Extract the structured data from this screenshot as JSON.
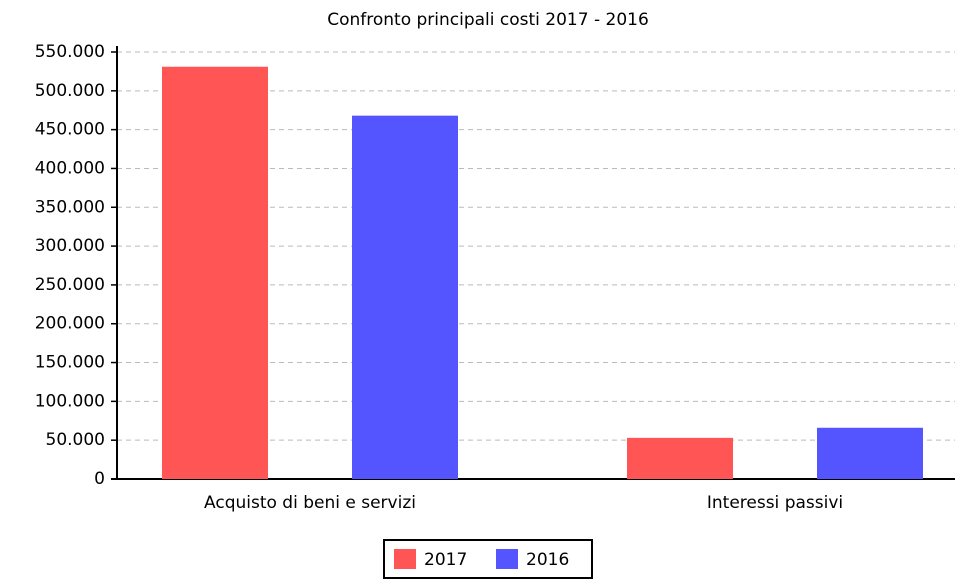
{
  "chart_data": {
    "type": "bar",
    "title": "Confronto principali costi 2017 - 2016",
    "categories": [
      "Acquisto di beni e servizi",
      "Interessi passivi"
    ],
    "series": [
      {
        "name": "2017",
        "color": "#ff5555",
        "values": [
          531000,
          53000
        ]
      },
      {
        "name": "2016",
        "color": "#5555ff",
        "values": [
          468000,
          66000
        ]
      }
    ],
    "ylim": [
      0,
      550000
    ],
    "yticks": [
      0,
      {
        "value": 50000,
        "label": "50.000"
      },
      {
        "value": 100000,
        "label": "100.000"
      },
      {
        "value": 150000,
        "label": "150.000"
      },
      {
        "value": 200000,
        "label": "200.000"
      },
      {
        "value": 250000,
        "label": "250.000"
      },
      {
        "value": 300000,
        "label": "300.000"
      },
      {
        "value": 350000,
        "label": "350.000"
      },
      {
        "value": 400000,
        "label": "400.000"
      },
      {
        "value": 450000,
        "label": "450.000"
      },
      {
        "value": 500000,
        "label": "500.000"
      },
      {
        "value": 550000,
        "label": "550.000"
      }
    ],
    "grid": true,
    "legend": "bottom"
  }
}
